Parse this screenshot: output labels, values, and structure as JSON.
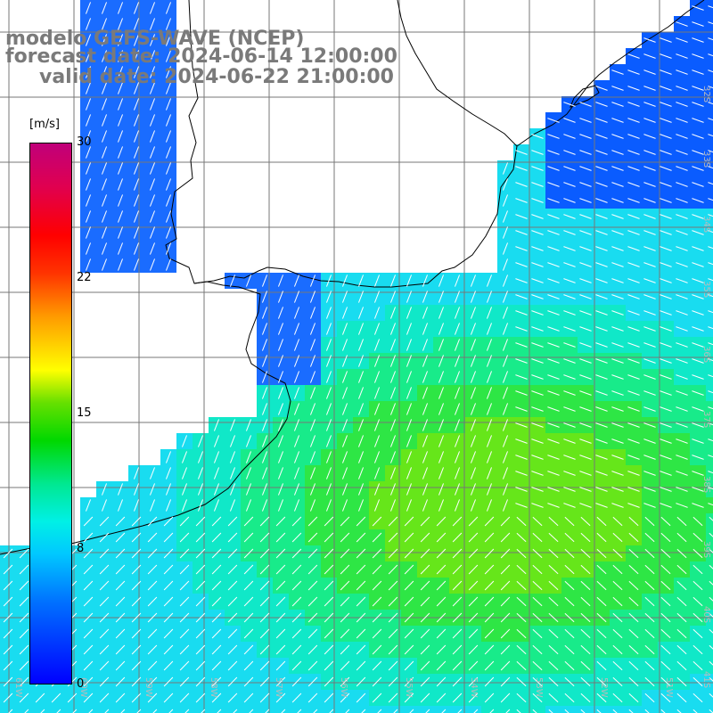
{
  "title": {
    "line1": "modelo GEFS-WAVE (NCEP)",
    "line2": "forecast date: 2024-06-14 12:00:00",
    "line3": "valid date: 2024-06-22 21:00:00"
  },
  "colorbar": {
    "unit": "[m/s]",
    "ticks": [
      "30",
      "22",
      "15",
      "8",
      "0"
    ],
    "tick_values": [
      30,
      22,
      15,
      8,
      0
    ],
    "colors": [
      "#0000ff",
      "#0070ff",
      "#00c8ff",
      "#00f0e6",
      "#00d800",
      "#ffff00",
      "#ff3300",
      "#ff0000",
      "#c0007a"
    ]
  },
  "map": {
    "land_color": "#ffffff",
    "coast_color": "#000000",
    "grid_color": "#777777",
    "arrow_color": "#ffffff",
    "lon_labels": [
      "61W",
      "60W",
      "59W",
      "58W",
      "57W",
      "56W",
      "55W",
      "54W",
      "53W",
      "52W",
      "51W"
    ],
    "lat_labels": [
      "32S",
      "33S",
      "34S",
      "35S",
      "36S",
      "37S",
      "38S",
      "39S",
      "40S",
      "41S"
    ]
  }
}
